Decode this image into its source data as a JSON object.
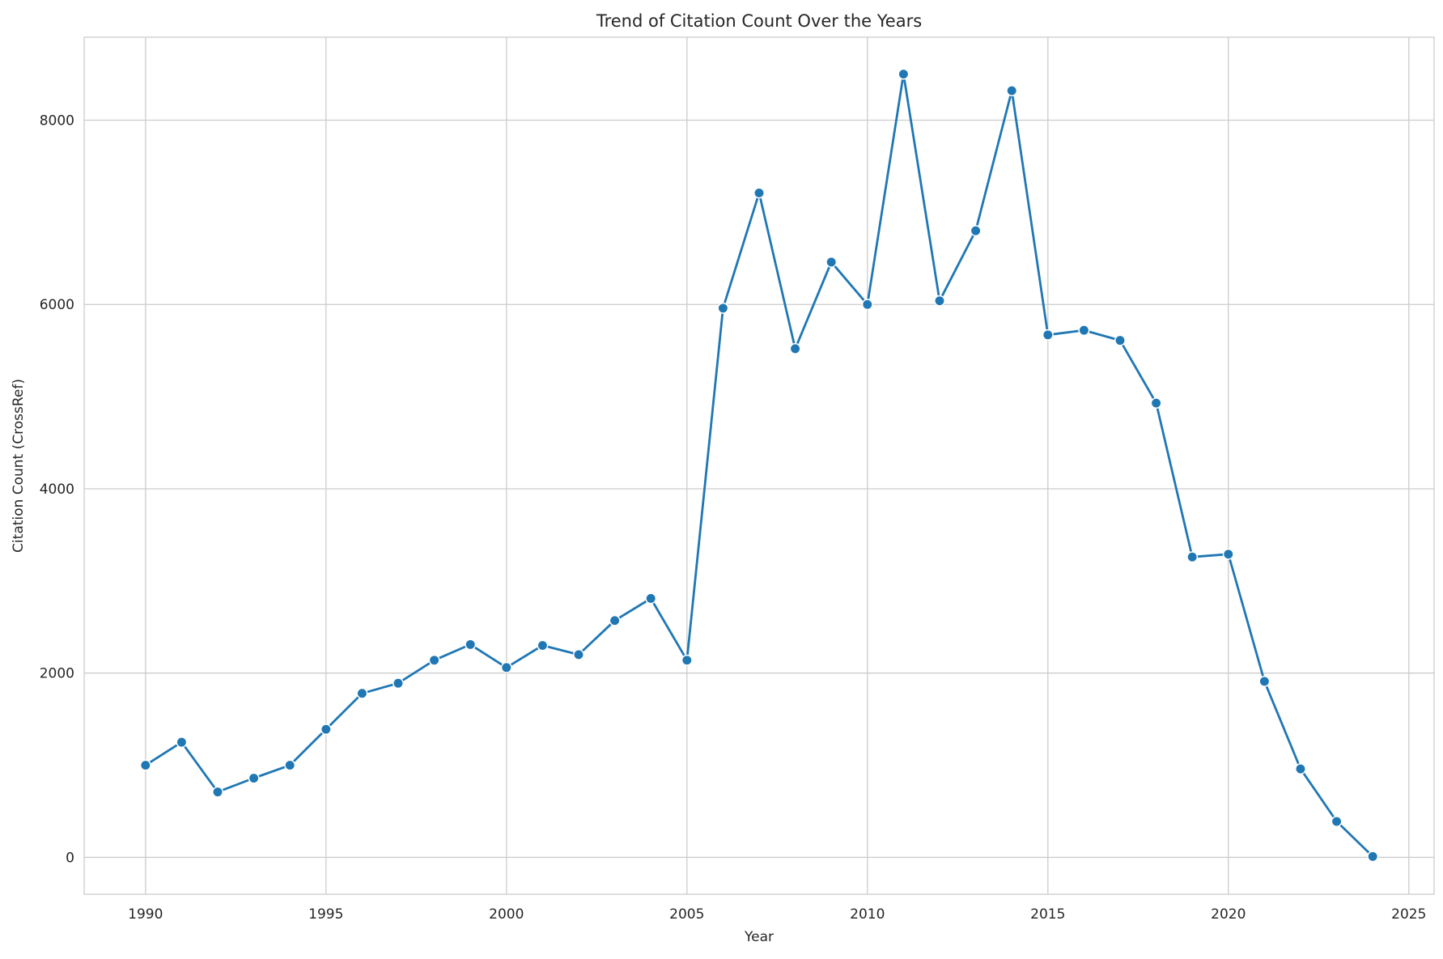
{
  "chart_data": {
    "type": "line",
    "title": "Trend of Citation Count Over the Years",
    "xlabel": "Year",
    "ylabel": "Citation Count (CrossRef)",
    "xlim": [
      1988.3,
      2025.7
    ],
    "ylim": [
      -400,
      8900
    ],
    "xticks": [
      1990,
      1995,
      2000,
      2005,
      2010,
      2015,
      2020,
      2025
    ],
    "yticks": [
      0,
      2000,
      4000,
      6000,
      8000
    ],
    "grid": true,
    "legend": "none",
    "series": [
      {
        "color": "#1f77b4",
        "marker": "circle",
        "x": [
          1990,
          1991,
          1992,
          1993,
          1994,
          1995,
          1996,
          1997,
          1998,
          1999,
          2000,
          2001,
          2002,
          2003,
          2004,
          2005,
          2006,
          2007,
          2008,
          2009,
          2010,
          2011,
          2012,
          2013,
          2014,
          2015,
          2016,
          2017,
          2018,
          2019,
          2020,
          2021,
          2022,
          2023,
          2024
        ],
        "y": [
          1000,
          1250,
          710,
          860,
          1000,
          1390,
          1780,
          1890,
          2140,
          2310,
          2060,
          2300,
          2200,
          2570,
          2810,
          2140,
          5960,
          7210,
          5520,
          6460,
          6000,
          8500,
          6040,
          6800,
          8320,
          5670,
          5720,
          5610,
          4930,
          3260,
          3290,
          1910,
          960,
          390,
          10
        ]
      }
    ]
  }
}
